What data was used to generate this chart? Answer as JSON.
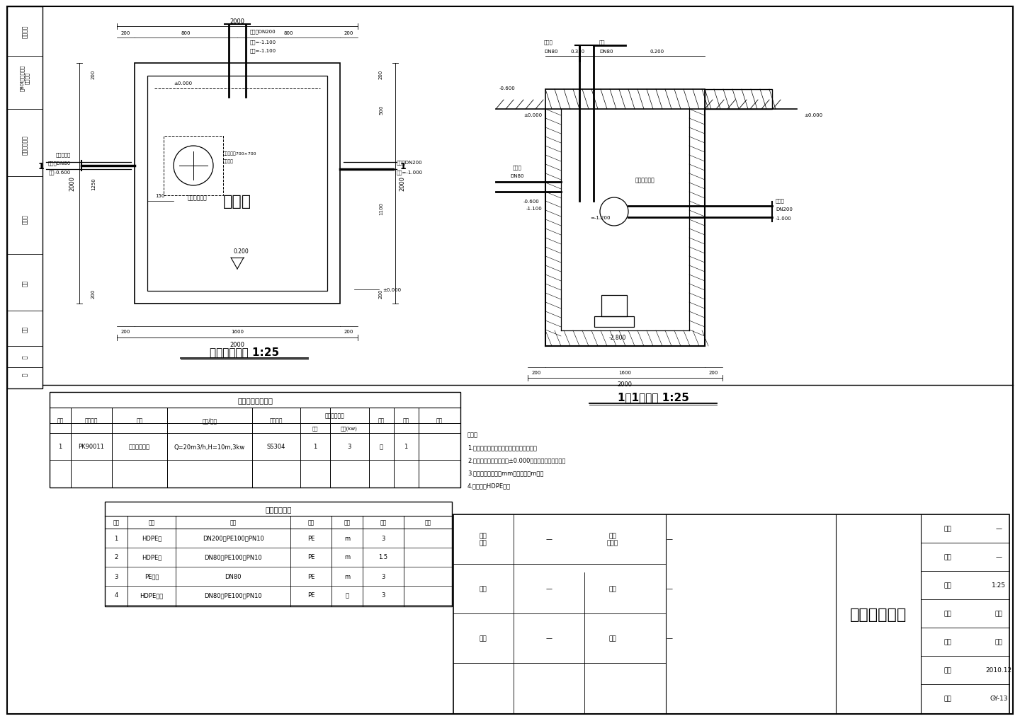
{
  "bg_color": "#ffffff",
  "line_color": "#000000",
  "title": "集水井工艺图",
  "plan_title": "集水井平面图 1:25",
  "section_title": "1－1剖面图 1:25",
  "notes": [
    "说明：",
    "1.本图为集水井工艺图，具体位置见总图。",
    "2.图中标高为相对标高，±0.000相对绝对标高见总图。",
    "3.图中单位，标注以mm计，标高以m计。",
    "4.管道采用HDPE管。"
  ],
  "equip_table_title": "主要设备材料清单",
  "equip_rows": [
    [
      "1",
      "PK90011",
      "集水井提升泵",
      "Q=20m3/h,H=10m,3kw",
      "SS304",
      "1",
      "3",
      "台",
      "1",
      ""
    ]
  ],
  "material_table_title": "主要材料清单",
  "material_headers": [
    "序号",
    "名称",
    "规格",
    "材质",
    "单位",
    "数量",
    "备注"
  ],
  "material_rows": [
    [
      "1",
      "HDPE管",
      "DN200，PE100，PN10",
      "PE",
      "m",
      "3",
      ""
    ],
    [
      "2",
      "HDPE管",
      "DN80，PE100，PN10",
      "PE",
      "m",
      "1.5",
      ""
    ],
    [
      "3",
      "PE软管",
      "DN80",
      "PE",
      "m",
      "3",
      ""
    ],
    [
      "4",
      "HDPE弯头",
      "DN80，PE100，PN10",
      "PE",
      "个",
      "3",
      ""
    ]
  ],
  "title_block_right": [
    [
      "工程",
      "—"
    ],
    [
      "编号",
      "—"
    ],
    [
      "比例",
      "1:25"
    ],
    [
      "专业",
      "工艺"
    ],
    [
      "阶段",
      "初设"
    ],
    [
      "日期",
      "2010.12"
    ],
    [
      "图号",
      "GY-13"
    ]
  ],
  "title_block_left": [
    [
      "项目\n经理",
      "—",
      "设计\n负责人",
      "—"
    ],
    [
      "审核",
      "—",
      "设计",
      "—"
    ],
    [
      "校核",
      "—",
      "制图",
      "—"
    ]
  ]
}
